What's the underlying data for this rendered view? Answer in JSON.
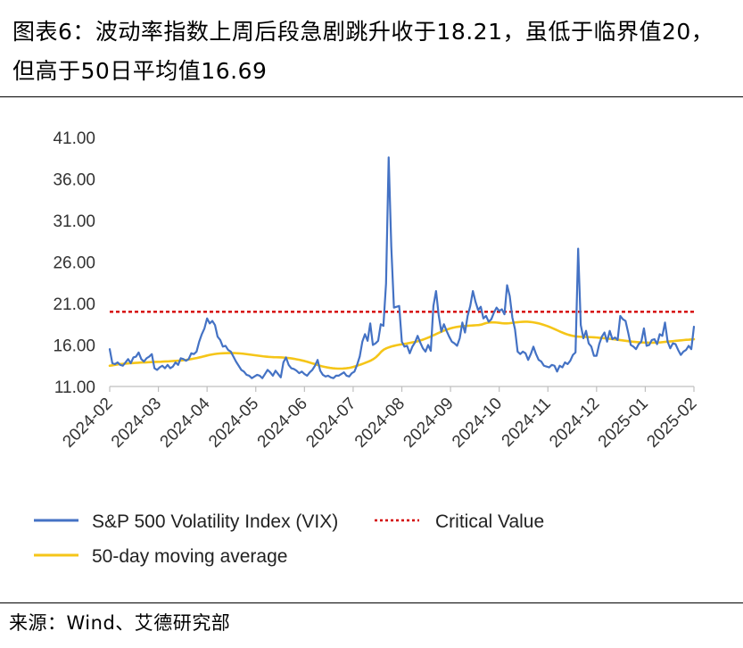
{
  "header": {
    "title": "图表6：波动率指数上周后段急剧跳升收于18.21，虽低于临界值20，但高于50日平均值16.69"
  },
  "footer": {
    "source": "来源：Wind、艾德研究部"
  },
  "colors": {
    "vix": "#4472C4",
    "ma": "#F5C518",
    "critical": "#D40000"
  },
  "chart_data": {
    "type": "line",
    "title": "",
    "xlabel": "",
    "ylabel": "",
    "ylim": [
      11,
      41
    ],
    "y_ticks": [
      "41.00",
      "36.00",
      "31.00",
      "26.00",
      "21.00",
      "16.00",
      "11.00"
    ],
    "x_ticks": [
      "2024-02",
      "2024-03",
      "2024-04",
      "2024-05",
      "2024-06",
      "2024-07",
      "2024-08",
      "2024-09",
      "2024-10",
      "2024-11",
      "2024-12",
      "2025-01",
      "2025-02"
    ],
    "legend": {
      "vix": "S&P 500 Volatility Index (VIX)",
      "critical": "Critical Value",
      "ma": "50-day moving average"
    },
    "critical_value": 20,
    "series": [
      {
        "name": "S&P 500 Volatility Index (VIX)",
        "key": "vix",
        "values": [
          15.5,
          13.8,
          13.7,
          13.9,
          13.6,
          13.5,
          13.9,
          14.3,
          13.8,
          14.5,
          14.6,
          15.1,
          14.3,
          14.0,
          14.4,
          14.6,
          14.9,
          13.2,
          13.0,
          13.3,
          13.5,
          13.2,
          13.6,
          13.2,
          13.4,
          13.9,
          13.6,
          14.4,
          14.3,
          14.1,
          14.3,
          15.0,
          14.9,
          15.2,
          16.4,
          17.3,
          18.0,
          19.2,
          18.6,
          18.9,
          18.4,
          17.0,
          16.6,
          15.8,
          15.9,
          15.4,
          15.2,
          14.6,
          14.0,
          13.5,
          13.0,
          12.8,
          12.4,
          12.3,
          12.0,
          12.2,
          12.4,
          12.3,
          12.0,
          12.5,
          13.0,
          12.7,
          12.3,
          12.9,
          12.5,
          12.1,
          13.9,
          14.5,
          13.6,
          13.2,
          13.1,
          12.9,
          12.6,
          12.8,
          12.5,
          12.3,
          12.7,
          13.0,
          13.5,
          14.2,
          12.9,
          12.4,
          12.2,
          12.3,
          12.1,
          12.0,
          12.3,
          12.3,
          12.5,
          12.7,
          12.3,
          12.2,
          12.6,
          12.8,
          13.6,
          14.6,
          16.4,
          17.3,
          16.5,
          18.6,
          16.0,
          16.2,
          16.5,
          18.5,
          18.3,
          23.4,
          38.6,
          27.8,
          20.5,
          20.6,
          20.7,
          16.4,
          15.8,
          15.9,
          15.0,
          15.8,
          16.3,
          17.1,
          16.3,
          15.6,
          15.2,
          16.0,
          15.3,
          20.7,
          22.5,
          19.6,
          17.6,
          18.5,
          17.7,
          17.0,
          16.4,
          16.2,
          15.9,
          16.8,
          18.7,
          17.5,
          19.5,
          20.7,
          22.5,
          21.2,
          20.2,
          20.6,
          19.2,
          19.5,
          18.8,
          19.1,
          19.9,
          20.5,
          20.1,
          20.3,
          19.7,
          23.2,
          21.9,
          19.3,
          17.9,
          15.2,
          14.9,
          15.2,
          15.0,
          14.2,
          14.9,
          15.8,
          14.9,
          14.2,
          14.0,
          13.5,
          13.4,
          13.3,
          13.6,
          13.5,
          12.8,
          13.5,
          13.3,
          13.9,
          13.7,
          14.1,
          14.8,
          15.1,
          27.6,
          18.4,
          16.8,
          17.7,
          16.2,
          15.8,
          14.7,
          14.7,
          16.1,
          17.0,
          17.5,
          16.4,
          17.7,
          16.7,
          16.9,
          16.6,
          19.5,
          19.1,
          18.9,
          17.5,
          16.0,
          15.8,
          15.5,
          16.1,
          16.4,
          18.0,
          15.9,
          16.0,
          16.6,
          16.7,
          16.1,
          17.3,
          17.1,
          18.7,
          16.4,
          15.6,
          16.2,
          16.1,
          15.4,
          14.8,
          15.2,
          15.4,
          15.9,
          15.5,
          18.2
        ]
      },
      {
        "name": "50-day moving average",
        "key": "ma",
        "values": [
          13.5,
          13.55,
          13.6,
          13.65,
          13.7,
          13.72,
          13.75,
          13.78,
          13.8,
          13.82,
          13.84,
          13.86,
          13.88,
          13.9,
          13.9,
          13.92,
          13.94,
          13.95,
          13.96,
          13.97,
          13.98,
          14.0,
          14.02,
          14.03,
          14.05,
          14.07,
          14.09,
          14.11,
          14.13,
          14.17,
          14.21,
          14.26,
          14.31,
          14.37,
          14.43,
          14.5,
          14.57,
          14.65,
          14.73,
          14.8,
          14.86,
          14.91,
          14.95,
          14.98,
          15.0,
          15.01,
          15.02,
          15.02,
          15.02,
          15.02,
          15.0,
          14.98,
          14.95,
          14.91,
          14.87,
          14.83,
          14.79,
          14.75,
          14.71,
          14.67,
          14.63,
          14.6,
          14.57,
          14.55,
          14.53,
          14.52,
          14.51,
          14.5,
          14.48,
          14.45,
          14.42,
          14.38,
          14.33,
          14.27,
          14.21,
          14.14,
          14.07,
          13.98,
          13.89,
          13.79,
          13.7,
          13.6,
          13.5,
          13.42,
          13.35,
          13.29,
          13.24,
          13.2,
          13.17,
          13.15,
          13.15,
          13.16,
          13.18,
          13.22,
          13.27,
          13.35,
          13.45,
          13.55,
          13.65,
          13.76,
          13.88,
          14.0,
          14.14,
          14.32,
          14.55,
          14.85,
          15.2,
          15.45,
          15.6,
          15.72,
          15.82,
          15.9,
          15.97,
          16.03,
          16.08,
          16.13,
          16.18,
          16.24,
          16.3,
          16.36,
          16.43,
          16.52,
          16.62,
          16.73,
          16.85,
          16.98,
          17.12,
          17.26,
          17.4,
          17.54,
          17.67,
          17.79,
          17.9,
          18.0,
          18.08,
          18.15,
          18.2,
          18.24,
          18.27,
          18.3,
          18.32,
          18.34,
          18.36,
          18.38,
          18.4,
          18.45,
          18.55,
          18.65,
          18.7,
          18.72,
          18.72,
          18.7,
          18.67,
          18.63,
          18.6,
          18.6,
          18.62,
          18.66,
          18.7,
          18.74,
          18.77,
          18.79,
          18.8,
          18.8,
          18.78,
          18.74,
          18.69,
          18.63,
          18.55,
          18.46,
          18.36,
          18.25,
          18.13,
          18.0,
          17.86,
          17.72,
          17.58,
          17.45,
          17.33,
          17.23,
          17.15,
          17.08,
          17.03,
          17.0,
          16.98,
          16.97,
          16.96,
          16.95,
          16.94,
          16.92,
          16.9,
          16.87,
          16.84,
          16.81,
          16.78,
          16.75,
          16.72,
          16.68,
          16.64,
          16.6,
          16.56,
          16.52,
          16.48,
          16.44,
          16.4,
          16.37,
          16.34,
          16.32,
          16.3,
          16.29,
          16.28,
          16.28,
          16.28,
          16.29,
          16.3,
          16.32,
          16.35,
          16.38,
          16.41,
          16.44,
          16.47,
          16.5,
          16.53,
          16.56,
          16.59,
          16.62,
          16.64,
          16.67,
          16.69
        ]
      }
    ]
  }
}
